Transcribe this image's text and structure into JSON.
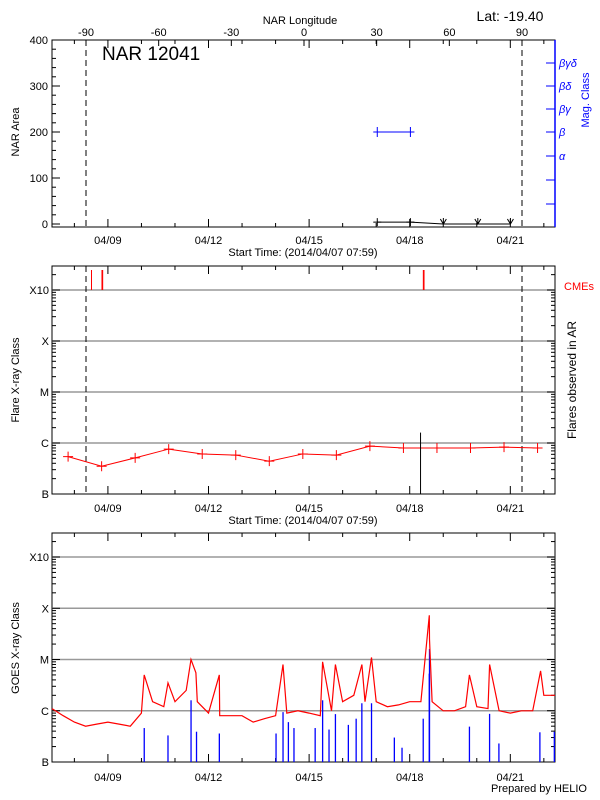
{
  "header": {
    "lat_label": "Lat: -19.40",
    "region_label": "NAR 12041",
    "credit": "Prepared by HELIO"
  },
  "colors": {
    "flare": "#ff0000",
    "goes_long": "#ff0000",
    "goes_short": "#0000ff",
    "mag_class": "#0000ff",
    "grid": "#999999",
    "axis": "#000000"
  },
  "chart_data": [
    {
      "type": "line",
      "panel": "nar",
      "ylabel": "NAR Area",
      "ylabel_right": "Mag. Class",
      "top_axis_label": "NAR Longitude",
      "xlabel": "Start Time: (2014/04/07 07:59)",
      "x_range": [
        "04/07 07:59",
        "04/22 07:59"
      ],
      "x_ticks": [
        "04/09",
        "04/12",
        "04/15",
        "04/18",
        "04/21"
      ],
      "ylim": [
        0,
        400
      ],
      "y_ticks": [
        0,
        100,
        200,
        300,
        400
      ],
      "lon_ticks": [
        -90,
        -60,
        -30,
        0,
        30,
        60,
        90
      ],
      "limb_longitudes": [
        -90,
        90
      ],
      "mag_class_ticks": [
        "βγδ",
        "βδ",
        "βγ",
        "β",
        "α"
      ],
      "area_series": [
        [
          "04/17 00:47",
          4
        ],
        [
          "04/18 00:30",
          4
        ],
        [
          "04/19 00:05",
          0
        ],
        [
          "04/20 00:45",
          0
        ],
        [
          "04/21 00:05",
          0
        ]
      ],
      "missing_marker_times": [
        "04/19 00:05",
        "04/20 00:45",
        "04/21 00:05"
      ],
      "mag_class_series": [
        [
          "04/17 00:47",
          "β"
        ],
        [
          "04/18 00:30",
          "β"
        ]
      ]
    },
    {
      "type": "line",
      "panel": "flares",
      "ylabel": "Flare X-ray Class",
      "ylabel_right": "Flares observed in AR",
      "cme_label": "CMEs",
      "xlabel": "Start Time: (2014/04/07 07:59)",
      "x_ticks": [
        "04/09",
        "04/12",
        "04/15",
        "04/18",
        "04/21"
      ],
      "y_ticks": [
        "B",
        "C",
        "M",
        "X",
        "X10"
      ],
      "background_series": [
        [
          "04/07 19:30",
          "B5.4"
        ],
        [
          "04/08 19:30",
          "B3.5"
        ],
        [
          "04/09 19:30",
          "B5.1"
        ],
        [
          "04/10 19:30",
          "B7.6"
        ],
        [
          "04/11 19:30",
          "B6.1"
        ],
        [
          "04/12 19:30",
          "B5.8"
        ],
        [
          "04/13 19:30",
          "B4.4"
        ],
        [
          "04/14 19:30",
          "B6.1"
        ],
        [
          "04/15 19:30",
          "B5.8"
        ],
        [
          "04/16 19:30",
          "B8.7"
        ],
        [
          "04/17 19:30",
          "B8"
        ],
        [
          "04/18 19:30",
          "B8"
        ],
        [
          "04/19 19:30",
          "B8"
        ],
        [
          "04/20 19:30",
          "B8.3"
        ],
        [
          "04/21 19:30",
          "B8"
        ]
      ],
      "flares": [
        [
          "04/18 07:45",
          "C1.6"
        ]
      ],
      "cmes": [
        "04/08 12:15",
        "04/08 19:45",
        "04/08 20:15",
        "04/18 09:45",
        "04/18 10:15"
      ]
    },
    {
      "type": "line",
      "panel": "goes",
      "ylabel": "GOES X-ray Class",
      "x_ticks": [
        "04/09",
        "04/12",
        "04/15",
        "04/18",
        "04/21"
      ],
      "y_ticks": [
        "B",
        "C",
        "M",
        "X",
        "X10"
      ],
      "long_channel": [
        [
          "04/07 08:00",
          "C1.1"
        ],
        [
          "04/07 16:00",
          "B8"
        ],
        [
          "04/08 00:00",
          "B6"
        ],
        [
          "04/08 08:00",
          "B5"
        ],
        [
          "04/08 16:00",
          "B5.5"
        ],
        [
          "04/09 00:00",
          "B6"
        ],
        [
          "04/09 08:00",
          "B5.5"
        ],
        [
          "04/09 16:00",
          "B5"
        ],
        [
          "04/10 00:00",
          "B9"
        ],
        [
          "04/10 02:00",
          "C5"
        ],
        [
          "04/10 08:00",
          "C1.5"
        ],
        [
          "04/10 16:00",
          "C1.2"
        ],
        [
          "04/10 19:00",
          "C3.5"
        ],
        [
          "04/11 00:00",
          "C1.5"
        ],
        [
          "04/11 08:00",
          "C2.5"
        ],
        [
          "04/11 11:30",
          "M1"
        ],
        [
          "04/11 15:00",
          "C5.5"
        ],
        [
          "04/11 16:00",
          "C1.5"
        ],
        [
          "04/12 00:00",
          "B9"
        ],
        [
          "04/12 07:45",
          "C5"
        ],
        [
          "04/12 08:00",
          "B8"
        ],
        [
          "04/12 16:00",
          "B8"
        ],
        [
          "04/13 00:00",
          "B8"
        ],
        [
          "04/13 08:00",
          "B6"
        ],
        [
          "04/13 16:00",
          "B7"
        ],
        [
          "04/14 00:00",
          "B8"
        ],
        [
          "04/14 05:20",
          "C8"
        ],
        [
          "04/14 08:00",
          "B9"
        ],
        [
          "04/14 16:00",
          "C1"
        ],
        [
          "04/15 00:00",
          "B9"
        ],
        [
          "04/15 08:00",
          "B8"
        ],
        [
          "04/15 09:40",
          "C9"
        ],
        [
          "04/15 16:00",
          "C1"
        ],
        [
          "04/15 18:50",
          "C8"
        ],
        [
          "04/16 00:00",
          "C1.5"
        ],
        [
          "04/16 08:00",
          "C2"
        ],
        [
          "04/16 13:45",
          "C8"
        ],
        [
          "04/16 16:00",
          "C1.5"
        ],
        [
          "04/16 20:40",
          "M1.1"
        ],
        [
          "04/17 00:00",
          "C1.5"
        ],
        [
          "04/17 08:00",
          "C1.2"
        ],
        [
          "04/17 16:00",
          "C1.3"
        ],
        [
          "04/18 00:00",
          "C1.5"
        ],
        [
          "04/18 08:00",
          "C1.5"
        ],
        [
          "04/18 14:00",
          "M7.3"
        ],
        [
          "04/18 14:10",
          "M2.5"
        ],
        [
          "04/18 16:00",
          "C1.5"
        ],
        [
          "04/19 00:00",
          "C1"
        ],
        [
          "04/19 08:00",
          "C1"
        ],
        [
          "04/19 16:00",
          "C1.2"
        ],
        [
          "04/19 18:45",
          "C5"
        ],
        [
          "04/20 00:00",
          "C1.2"
        ],
        [
          "04/20 08:00",
          "C1.1"
        ],
        [
          "04/20 09:10",
          "C8"
        ],
        [
          "04/20 16:00",
          "C1"
        ],
        [
          "04/21 00:00",
          "B9"
        ],
        [
          "04/21 08:00",
          "C1"
        ],
        [
          "04/21 16:00",
          "C1"
        ],
        [
          "04/21 21:40",
          "C6"
        ],
        [
          "04/22 00:00",
          "C2"
        ],
        [
          "04/22 07:59",
          "C2"
        ]
      ],
      "short_channel": [
        [
          "04/10 02:00",
          "B4.6"
        ],
        [
          "04/10 19:00",
          "B3.3"
        ],
        [
          "04/11 11:30",
          "C1.6"
        ],
        [
          "04/11 15:25",
          "B3.9"
        ],
        [
          "04/12 07:45",
          "B3.6"
        ],
        [
          "04/14 00:20",
          "B3.6"
        ],
        [
          "04/14 05:20",
          "B9.4"
        ],
        [
          "04/14 09:10",
          "B6"
        ],
        [
          "04/14 13:10",
          "B4.6"
        ],
        [
          "04/15 04:20",
          "B4.6"
        ],
        [
          "04/15 09:40",
          "C1.6"
        ],
        [
          "04/15 14:15",
          "B4.3"
        ],
        [
          "04/15 18:50",
          "B8.6"
        ],
        [
          "04/16 04:05",
          "B5.3"
        ],
        [
          "04/16 09:40",
          "B7"
        ],
        [
          "04/16 13:45",
          "C1.4"
        ],
        [
          "04/16 20:40",
          "C1.4"
        ],
        [
          "04/17 13:00",
          "B3"
        ],
        [
          "04/17 18:30",
          "B1.9"
        ],
        [
          "04/18 09:40",
          "B7"
        ],
        [
          "04/18 14:00",
          "C5.3"
        ],
        [
          "04/18 14:10",
          "M1.6"
        ],
        [
          "04/19 18:45",
          "B4.9"
        ],
        [
          "04/20 09:10",
          "B8.7"
        ],
        [
          "04/20 15:50",
          "B2.3"
        ],
        [
          "04/21 21:10",
          "B3.8"
        ],
        [
          "04/22 07:30",
          "B3.9"
        ]
      ]
    }
  ]
}
